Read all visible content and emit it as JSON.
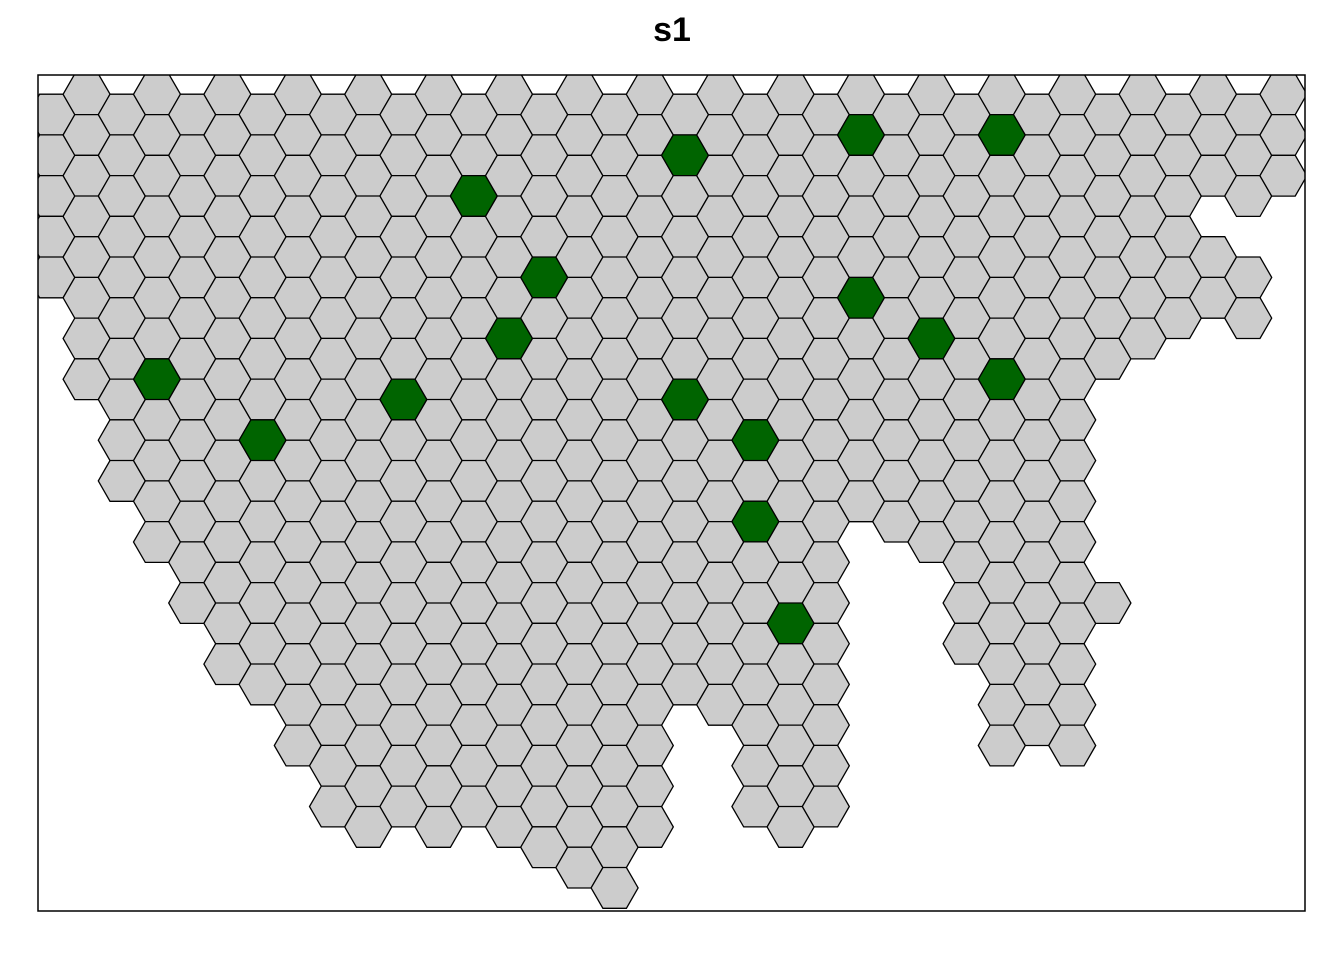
{
  "title": "s1"
}
